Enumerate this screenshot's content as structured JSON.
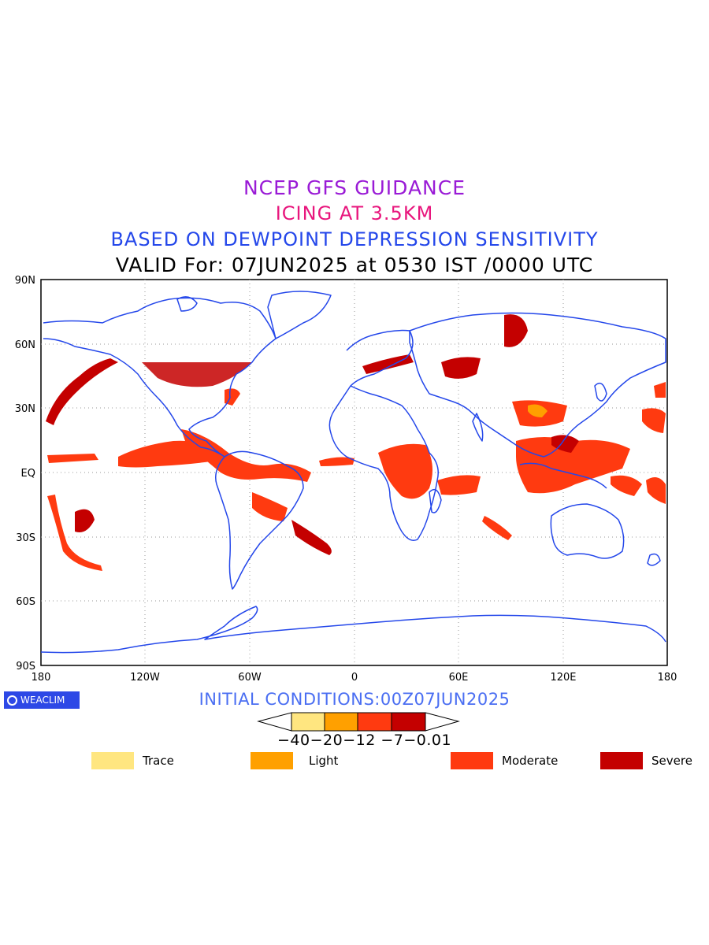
{
  "titles": {
    "line1": "NCEP GFS GUIDANCE",
    "line2": "ICING AT 3.5KM",
    "line3": "BASED ON DEWPOINT DEPRESSION SENSITIVITY",
    "line4": "VALID For: 07JUN2025 at 0530 IST /0000 UTC"
  },
  "axes": {
    "lat_labels": [
      "90N",
      "60N",
      "30N",
      "EQ",
      "30S",
      "60S",
      "90S"
    ],
    "lon_labels": [
      "180",
      "120W",
      "60W",
      "0",
      "60E",
      "120E",
      "180"
    ]
  },
  "logo": {
    "text": "WEACLIM",
    "icon": "copyright-ring-icon"
  },
  "initial_conditions": "INITIAL CONDITIONS:00Z07JUN2025",
  "colorbar": {
    "tick_labels": "−40−20−12 −7−0.01",
    "colors": [
      "#ffe680",
      "#ffa000",
      "#ff3a10",
      "#c40000"
    ]
  },
  "legend": [
    {
      "label": "Trace",
      "color": "#ffe680"
    },
    {
      "label": "Light",
      "color": "#ffa000"
    },
    {
      "label": "Moderate",
      "color": "#ff3a10"
    },
    {
      "label": "Severe",
      "color": "#c40000"
    }
  ],
  "colors": {
    "coastline": "#2447ea",
    "grid": "#9a9a9a"
  }
}
